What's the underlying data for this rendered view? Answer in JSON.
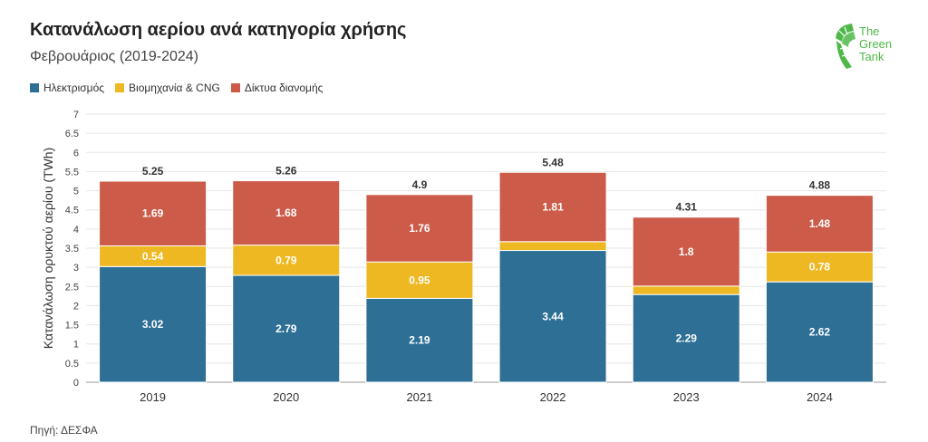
{
  "title": "Κατανάλωση αερίου ανά κατηγορία χρήσης",
  "subtitle": "Φεβρουάριος (2019-2024)",
  "source": "Πηγή: ΔΕΣΦΑ",
  "logo": {
    "line1": "The",
    "line2": "Green",
    "line3": "Tank",
    "color": "#4fb848"
  },
  "chart_data": {
    "type": "bar",
    "stacked": true,
    "categories": [
      "2019",
      "2020",
      "2021",
      "2022",
      "2023",
      "2024"
    ],
    "series": [
      {
        "name": "Ηλεκτρισμός",
        "color": "#2e6f96",
        "values": [
          3.02,
          2.79,
          2.19,
          3.44,
          2.29,
          2.62
        ],
        "labels": [
          "3.02",
          "2.79",
          "2.19",
          "3.44",
          "2.29",
          "2.62"
        ]
      },
      {
        "name": "Βιομηχανία & CNG",
        "color": "#edb821",
        "values": [
          0.54,
          0.79,
          0.95,
          0.23,
          0.22,
          0.78
        ],
        "labels": [
          "0.54",
          "0.79",
          "0.95",
          "",
          "",
          "0.78"
        ]
      },
      {
        "name": "Δίκτυα διανομής",
        "color": "#cc5b49",
        "values": [
          1.69,
          1.68,
          1.76,
          1.81,
          1.8,
          1.48
        ],
        "labels": [
          "1.69",
          "1.68",
          "1.76",
          "1.81",
          "1.8",
          "1.48"
        ]
      }
    ],
    "totals": [
      "5.25",
      "5.26",
      "4.9",
      "5.48",
      "4.31",
      "4.88"
    ],
    "ylabel": "Κατανάλωση ορυκτού αερίου (TWh)",
    "xlabel": "",
    "ylim": [
      0,
      7
    ],
    "yticks": [
      "0",
      "0.5",
      "1",
      "1.5",
      "2",
      "2.5",
      "3",
      "3.5",
      "4",
      "4.5",
      "5",
      "5.5",
      "6",
      "6.5",
      "7"
    ],
    "grid": true,
    "legend_position": "top-left"
  }
}
